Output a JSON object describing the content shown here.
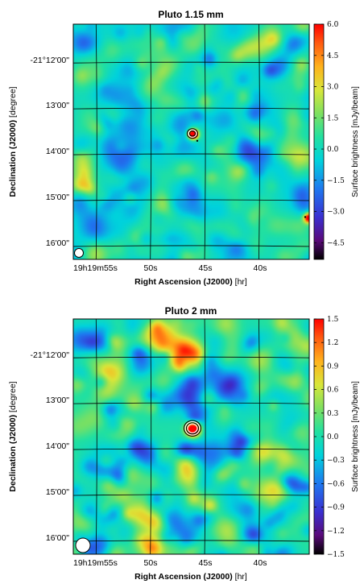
{
  "chart_data": [
    {
      "type": "heatmap",
      "title": "Pluto 1.15 mm",
      "xlabel_main": "Right Ascension (J2000)",
      "xlabel_unit": " [hr]",
      "ylabel_main": "Declination (J2000)",
      "ylabel_unit": " [degree]",
      "colorbar_label": "Surface brightness [mJy/beam]",
      "x_ticks": [
        "19h19m55s",
        "50s",
        "45s",
        "40s"
      ],
      "y_ticks": [
        "-21°12'00\"",
        "13'00\"",
        "14'00\"",
        "15'00\"",
        "16'00\""
      ],
      "colorbar_range": [
        -5.3,
        6.0
      ],
      "colorbar_ticks": [
        {
          "value": 6.0,
          "label": "6.0"
        },
        {
          "value": 4.5,
          "label": "4.5"
        },
        {
          "value": 3.0,
          "label": "3.0"
        },
        {
          "value": 1.5,
          "label": "1.5"
        },
        {
          "value": 0.0,
          "label": "0.0"
        },
        {
          "value": -1.5,
          "label": "−1.5"
        },
        {
          "value": -3.0,
          "label": "−3.0"
        },
        {
          "value": -4.5,
          "label": "−4.5"
        }
      ],
      "noise_rms": 0.9,
      "sources": [
        {
          "ra_frac": 0.505,
          "dec_frac": 0.465,
          "peak": 6.0
        },
        {
          "ra_frac": 0.995,
          "dec_frac": 0.82,
          "peak": 4.8
        }
      ],
      "contours": 3,
      "grid": true,
      "beam": "bottom-left"
    },
    {
      "type": "heatmap",
      "title": "Pluto 2 mm",
      "xlabel_main": "Right Ascension (J2000)",
      "xlabel_unit": " [hr]",
      "ylabel_main": "Declination (J2000)",
      "ylabel_unit": " [degree]",
      "colorbar_label": "Surface brightness [mJy/beam]",
      "x_ticks": [
        "19h19m55s",
        "50s",
        "45s",
        "40s"
      ],
      "y_ticks": [
        "-21°12'00\"",
        "13'00\"",
        "14'00\"",
        "15'00\"",
        "16'00\""
      ],
      "colorbar_range": [
        -1.5,
        1.5
      ],
      "colorbar_ticks": [
        {
          "value": 1.5,
          "label": "1.5"
        },
        {
          "value": 1.2,
          "label": "1.2"
        },
        {
          "value": 0.9,
          "label": "0.9"
        },
        {
          "value": 0.6,
          "label": "0.6"
        },
        {
          "value": 0.3,
          "label": "0.3"
        },
        {
          "value": 0.0,
          "label": "0.0"
        },
        {
          "value": -0.3,
          "label": "−0.3"
        },
        {
          "value": -0.6,
          "label": "−0.6"
        },
        {
          "value": -0.9,
          "label": "−0.9"
        },
        {
          "value": -1.2,
          "label": "−1.2"
        },
        {
          "value": -1.5,
          "label": "−1.5"
        }
      ],
      "noise_rms": 0.35,
      "sources": [
        {
          "ra_frac": 0.505,
          "dec_frac": 0.465,
          "peak": 1.5
        }
      ],
      "contours": 4,
      "grid": true,
      "beam": "bottom-left"
    }
  ]
}
